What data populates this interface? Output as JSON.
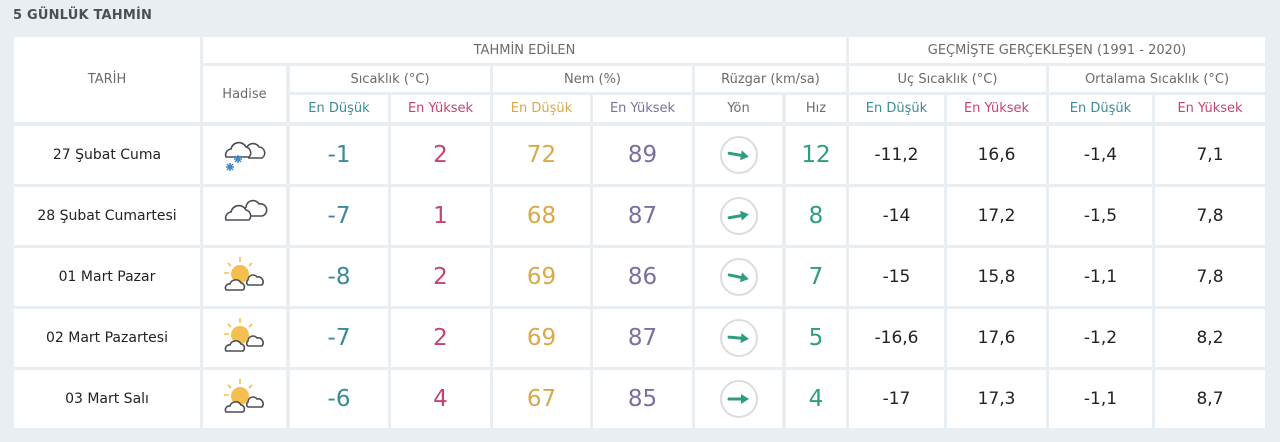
{
  "title": "5 GÜNLÜK TAHMİN",
  "header": {
    "tarih": "TARİH",
    "hadise": "Hadise",
    "tahmin_edilen": "TAHMİN EDİLEN",
    "gecmiste": "GEÇMİŞTE GERÇEKLEŞEN (1991 - 2020)",
    "sicaklik": "Sıcaklık (°C)",
    "nem": "Nem (%)",
    "ruzgar": "Rüzgar (km/sa)",
    "uc_sicaklik": "Uç Sıcaklık (°C)",
    "ortalama_sicaklik": "Ortalama Sıcaklık (°C)",
    "en_dusuk": "En Düşük",
    "en_yuksek": "En Yüksek",
    "yon": "Yön",
    "hiz": "Hız"
  },
  "colors": {
    "temp_low": "#3a8a9a",
    "temp_high": "#c5456a",
    "hum_low": "#d9a84a",
    "hum_high": "#7b6fa0",
    "wind": "#2e9c80"
  },
  "rows": [
    {
      "date": "27 Şubat Cuma",
      "icon": "cloud-snow-icon",
      "t_min": "-1",
      "t_max": "2",
      "h_min": "72",
      "h_max": "89",
      "wind_dir_deg": 10,
      "wind_speed": "12",
      "ext_min": "-11,2",
      "ext_max": "16,6",
      "avg_min": "-1,4",
      "avg_max": "7,1"
    },
    {
      "date": "28 Şubat Cumartesi",
      "icon": "cloudy-icon",
      "t_min": "-7",
      "t_max": "1",
      "h_min": "68",
      "h_max": "87",
      "wind_dir_deg": -10,
      "wind_speed": "8",
      "ext_min": "-14",
      "ext_max": "17,2",
      "avg_min": "-1,5",
      "avg_max": "7,8"
    },
    {
      "date": "01 Mart Pazar",
      "icon": "partly-cloudy-icon",
      "t_min": "-8",
      "t_max": "2",
      "h_min": "69",
      "h_max": "86",
      "wind_dir_deg": 12,
      "wind_speed": "7",
      "ext_min": "-15",
      "ext_max": "15,8",
      "avg_min": "-1,1",
      "avg_max": "7,8"
    },
    {
      "date": "02 Mart Pazartesi",
      "icon": "partly-cloudy-icon",
      "t_min": "-7",
      "t_max": "2",
      "h_min": "69",
      "h_max": "87",
      "wind_dir_deg": 5,
      "wind_speed": "5",
      "ext_min": "-16,6",
      "ext_max": "17,6",
      "avg_min": "-1,2",
      "avg_max": "8,2"
    },
    {
      "date": "03 Mart Salı",
      "icon": "partly-cloudy-icon",
      "t_min": "-6",
      "t_max": "4",
      "h_min": "67",
      "h_max": "85",
      "wind_dir_deg": 0,
      "wind_speed": "4",
      "ext_min": "-17",
      "ext_max": "17,3",
      "avg_min": "-1,1",
      "avg_max": "8,7"
    }
  ]
}
